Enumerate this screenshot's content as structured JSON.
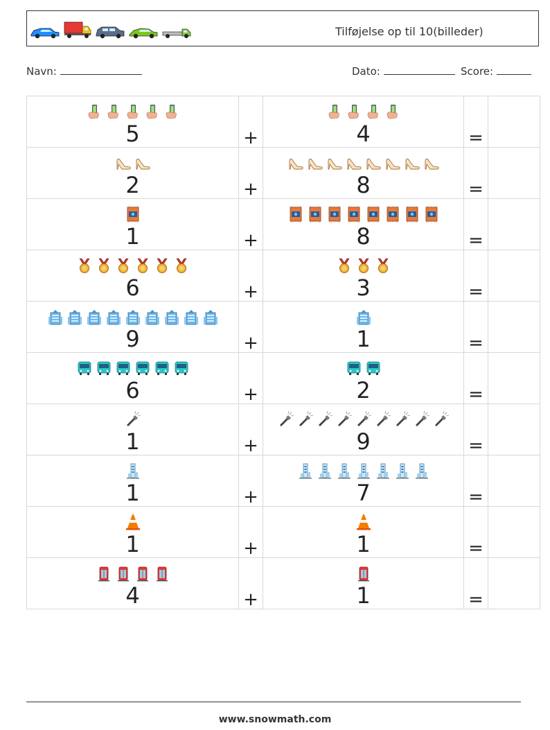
{
  "header": {
    "title": "Tilføjelse op til 10(billeder)",
    "vehicle_icons": [
      "blue-car-icon",
      "red-truck-icon",
      "gray-suv-icon",
      "green-car-icon",
      "tow-truck-icon"
    ]
  },
  "info": {
    "name_label": "Navn:",
    "date_label": "Dato:",
    "score_label": "Score:"
  },
  "operators": {
    "plus": "+",
    "equals": "="
  },
  "rows": [
    {
      "left": {
        "count": 5,
        "icon": "smartphone-hand-icon",
        "label": "5"
      },
      "right": {
        "count": 4,
        "icon": "smartphone-hand-icon",
        "label": "4"
      }
    },
    {
      "left": {
        "count": 2,
        "icon": "high-heel-icon",
        "label": "2"
      },
      "right": {
        "count": 8,
        "icon": "high-heel-icon",
        "label": "8"
      }
    },
    {
      "left": {
        "count": 1,
        "icon": "carpet-icon",
        "label": "1"
      },
      "right": {
        "count": 8,
        "icon": "carpet-icon",
        "label": "8"
      }
    },
    {
      "left": {
        "count": 6,
        "icon": "medal-icon",
        "label": "6"
      },
      "right": {
        "count": 3,
        "icon": "medal-icon",
        "label": "3"
      }
    },
    {
      "left": {
        "count": 9,
        "icon": "building-icon",
        "label": "9"
      },
      "right": {
        "count": 1,
        "icon": "building-icon",
        "label": "1"
      }
    },
    {
      "left": {
        "count": 6,
        "icon": "bus-icon",
        "label": "6"
      },
      "right": {
        "count": 2,
        "icon": "bus-icon",
        "label": "2"
      }
    },
    {
      "left": {
        "count": 1,
        "icon": "flashlight-icon",
        "label": "1"
      },
      "right": {
        "count": 9,
        "icon": "flashlight-icon",
        "label": "9"
      }
    },
    {
      "left": {
        "count": 1,
        "icon": "tower-icon",
        "label": "1"
      },
      "right": {
        "count": 7,
        "icon": "tower-icon",
        "label": "7"
      }
    },
    {
      "left": {
        "count": 1,
        "icon": "traffic-cone-icon",
        "label": "1"
      },
      "right": {
        "count": 1,
        "icon": "traffic-cone-icon",
        "label": "1"
      }
    },
    {
      "left": {
        "count": 4,
        "icon": "phone-booth-icon",
        "label": "4"
      },
      "right": {
        "count": 1,
        "icon": "phone-booth-icon",
        "label": "1"
      }
    }
  ],
  "footer": {
    "url": "www.snowmath.com"
  },
  "colors": {
    "border": "#d8d8d8",
    "text": "#222222"
  }
}
